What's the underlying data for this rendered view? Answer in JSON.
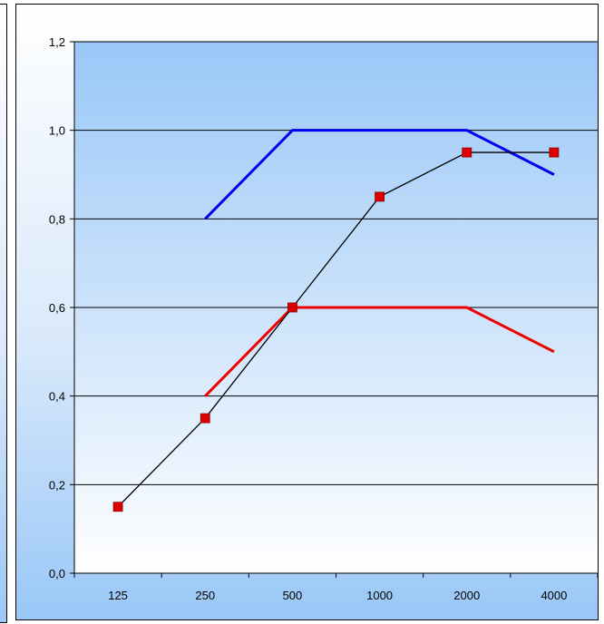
{
  "chart_data": {
    "type": "line",
    "categories": [
      "125",
      "250",
      "500",
      "1000",
      "2000",
      "4000"
    ],
    "y_tick_labels": [
      "0,0",
      "0,2",
      "0,4",
      "0,6",
      "0,8",
      "1,0",
      "1,2"
    ],
    "ylim": [
      0,
      1.2
    ],
    "grid": true,
    "legend": "none",
    "series": [
      {
        "values": [
          null,
          0.8,
          1.0,
          1.0,
          1.0,
          0.9
        ],
        "color": "#0000ee",
        "marker": "none"
      },
      {
        "values": [
          null,
          0.4,
          0.6,
          0.6,
          0.6,
          0.5
        ],
        "color": "#ee0000",
        "marker": "none"
      },
      {
        "values": [
          0.15,
          0.35,
          0.6,
          0.85,
          0.95,
          0.95
        ],
        "color": "#000000",
        "marker": "square",
        "marker_color": "#dd0000"
      }
    ],
    "colors": {
      "plot_top": "#ffffff",
      "plot_bottom": "#99c7f7"
    }
  }
}
